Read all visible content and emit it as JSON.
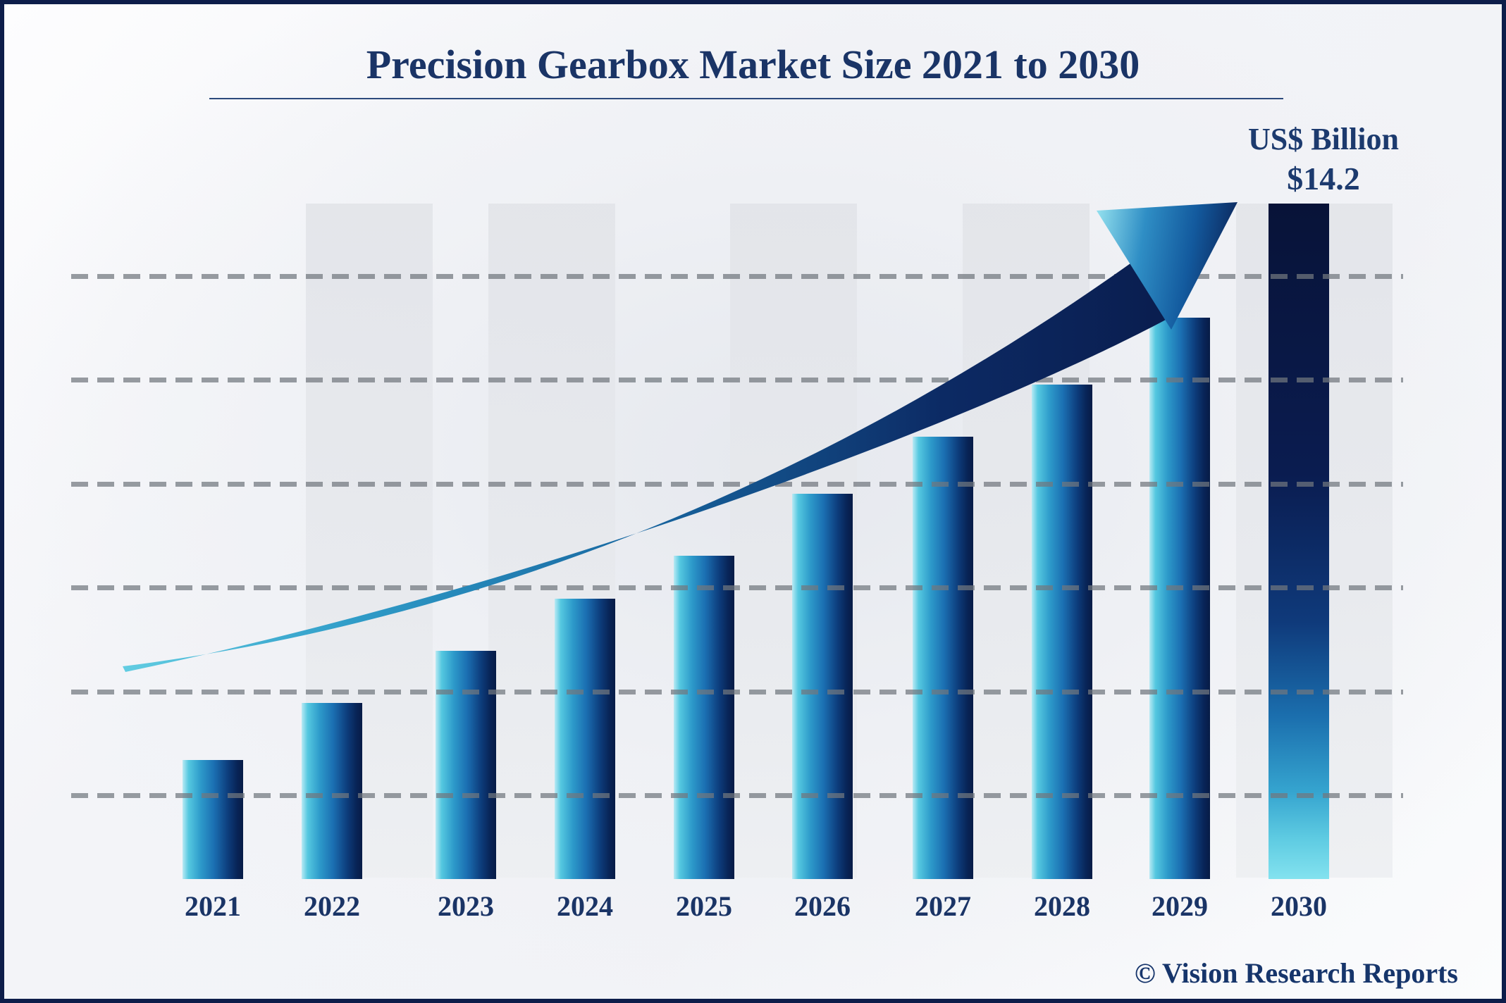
{
  "header": {
    "title": "Precision Gearbox Market Size 2021 to 2030",
    "unit_label": "US$ Billion",
    "final_value_label": "$14.2"
  },
  "watermark": "© Vision Research Reports",
  "chart_data": {
    "type": "bar",
    "title": "Precision Gearbox Market Size 2021 to 2030",
    "unit": "US$ Billion",
    "categories": [
      "2021",
      "2022",
      "2023",
      "2024",
      "2025",
      "2026",
      "2027",
      "2028",
      "2029",
      "2030"
    ],
    "values": [
      2.5,
      3.7,
      4.8,
      5.9,
      6.8,
      8.1,
      9.3,
      10.4,
      11.8,
      14.2
    ],
    "labeled_points": [
      {
        "category": "2030",
        "label": "$14.2"
      }
    ],
    "xlabel": "",
    "ylabel": "US$ Billion",
    "ylim": [
      0,
      14.2
    ],
    "gridlines": "horizontal-dashed",
    "gridline_count": 6,
    "legend": "none",
    "annotations": [
      "upward trend arrow"
    ],
    "colors": {
      "bar_gradient_left": "#55c8e0",
      "bar_gradient_right": "#071c46",
      "final_bar_top": "#081338",
      "final_bar_bottom": "#83e2ef",
      "arrow_tail_start": "#62cde2",
      "arrow_tail_end": "#0a1d4e",
      "title_text": "#1a3466",
      "gridline": "#a7aaad",
      "background": "#f2f3f7",
      "stripe": "#e6e8ec",
      "frame_border": "#0d1d4a"
    }
  }
}
